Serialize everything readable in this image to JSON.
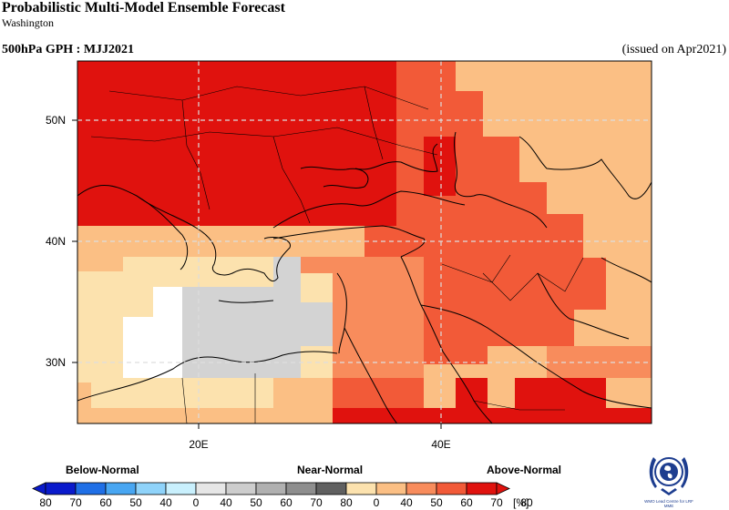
{
  "header": {
    "title": "Probabilistic Multi-Model Ensemble Forecast",
    "subtitle": "Washington",
    "variable": "500hPa GPH : MJJ2021",
    "issued": "(issued on Apr2021)"
  },
  "map": {
    "lat_labels": [
      "50N",
      "40N",
      "30N"
    ],
    "lon_labels": [
      "20E",
      "40E"
    ],
    "grid_lines": "dashed",
    "category_colors": {
      "above_80": "#e0120e",
      "above_70": "#f25a38",
      "above_60": "#f88c5c",
      "above_50": "#fbbf84",
      "above_40": "#fce2ae",
      "below_40": "#ffffff",
      "near_40": "#d3d3d3"
    }
  },
  "legend": {
    "below_label": "Below-Normal",
    "near_label": "Near-Normal",
    "above_label": "Above-Normal",
    "unit": "[%]",
    "ticks": [
      "80",
      "70",
      "60",
      "50",
      "40",
      "0",
      "40",
      "50",
      "60",
      "70",
      "80",
      "0",
      "40",
      "50",
      "60",
      "70",
      "80"
    ],
    "below_colors": [
      "#0a1acc",
      "#1f6fe6",
      "#48a6f2",
      "#8fd3fa",
      "#c9f0fd"
    ],
    "near_colors": [
      "#e6e6e6",
      "#cdcdcd",
      "#b0b0b0",
      "#8e8e8e",
      "#606060"
    ],
    "above_colors": [
      "#fce2ae",
      "#fbbf84",
      "#f88c5c",
      "#f25a38",
      "#e0120e"
    ]
  },
  "logo": {
    "caption": "WMO Lead Centre for LRF MME"
  }
}
